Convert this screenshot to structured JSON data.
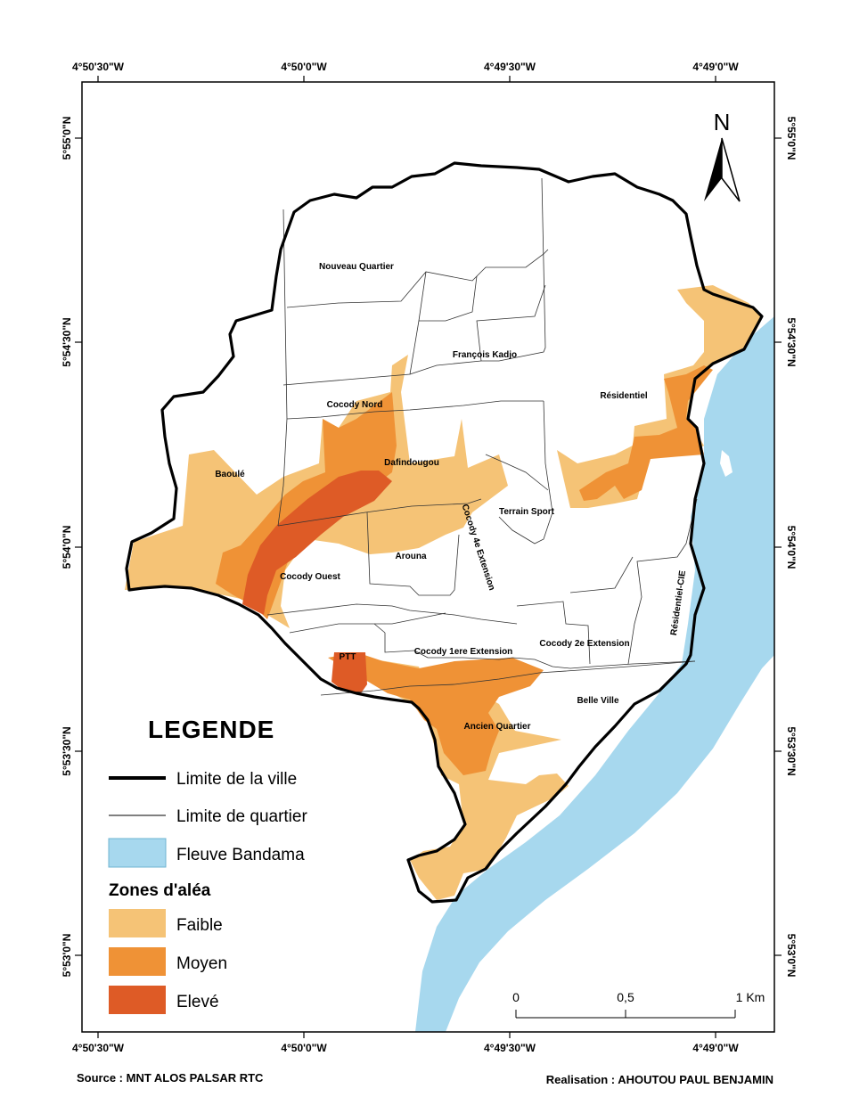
{
  "coordinates": {
    "top": [
      "4°50'30\"W",
      "4°50'0\"W",
      "4°49'30\"W",
      "4°49'0\"W"
    ],
    "bottom": [
      "4°50'30\"W",
      "4°50'0\"W",
      "4°49'30\"W",
      "4°49'0\"W"
    ],
    "left": [
      "5°55'0\"N",
      "5°54'30\"N",
      "5°54'0\"N",
      "5°53'30\"N",
      "5°53'0\"N"
    ],
    "right": [
      "5°55'0\"N",
      "5°54'30\"N",
      "5°54'0\"N",
      "5°53'30\"N",
      "5°53'0\"N"
    ]
  },
  "north_arrow": "N",
  "quarters": [
    "Nouveau Quartier",
    "François Kadjo",
    "Résidentiel",
    "Cocody Nord",
    "Dafindougou",
    "Baoulé",
    "Terrain Sport",
    "Cocody 4e Extension",
    "Arouna",
    "Cocody Ouest",
    "Résidentiel-CIE",
    "Cocody 2e Extension",
    "Cocody 1ere Extension",
    "PTT",
    "Belle Ville",
    "Ancien Quartier"
  ],
  "legend": {
    "title": "LEGENDE",
    "items": [
      "Limite de la ville",
      "Limite de quartier",
      "Fleuve Bandama"
    ],
    "zones_title": "Zones d'aléa",
    "zones": [
      "Faible",
      "Moyen",
      "Elevé"
    ]
  },
  "scale_bar": {
    "labels": [
      "0",
      "0,5",
      "1 Km"
    ]
  },
  "colors": {
    "faible": "#f5c376",
    "moyen": "#ef9236",
    "eleve": "#de5b26",
    "river": "#a7d8ee"
  },
  "footer": {
    "source": "Source : MNT ALOS PALSAR RTC",
    "realisation": "Realisation : AHOUTOU PAUL BENJAMIN"
  }
}
